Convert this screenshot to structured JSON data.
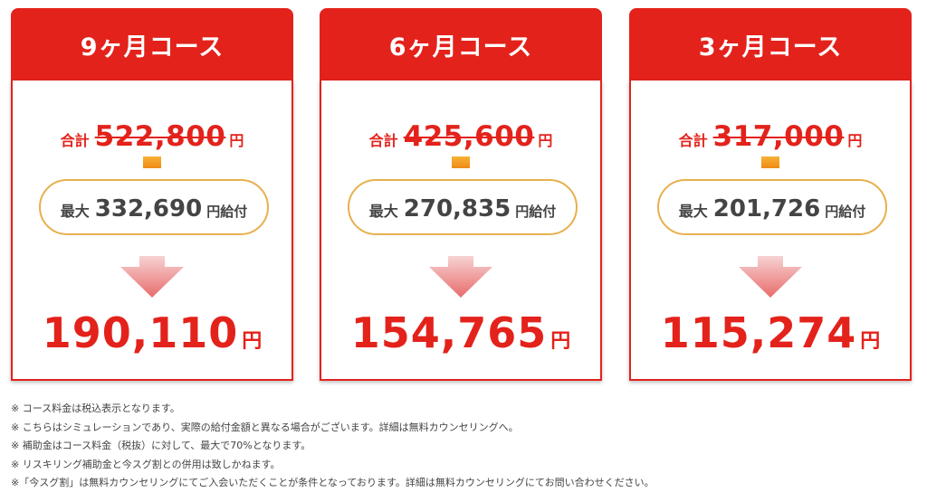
{
  "colors": {
    "accent": "#e3221b",
    "pill_border": "#e7b04e",
    "connector": "#f7b234",
    "arrow_top": "#f7d3d3",
    "arrow_bottom": "#e86b6b"
  },
  "cards": [
    {
      "title": "9ヶ月コース",
      "total_label": "合計",
      "total_price": "522,800",
      "total_yen": "円",
      "subsidy_label": "最大",
      "subsidy_amount": "332,690",
      "subsidy_suffix": "円給付",
      "final_price": "190,110",
      "final_yen": "円"
    },
    {
      "title": "6ヶ月コース",
      "total_label": "合計",
      "total_price": "425,600",
      "total_yen": "円",
      "subsidy_label": "最大",
      "subsidy_amount": "270,835",
      "subsidy_suffix": "円給付",
      "final_price": "154,765",
      "final_yen": "円"
    },
    {
      "title": "3ヶ月コース",
      "total_label": "合計",
      "total_price": "317,000",
      "total_yen": "円",
      "subsidy_label": "最大",
      "subsidy_amount": "201,726",
      "subsidy_suffix": "円給付",
      "final_price": "115,274",
      "final_yen": "円"
    }
  ],
  "notes": [
    "※ コース料金は税込表示となります。",
    "※ こちらはシミュレーションであり、実際の給付金額と異なる場合がございます。詳細は無料カウンセリングへ。",
    "※ 補助金はコース料金（税抜）に対して、最大で70%となります。",
    "※ リスキリング補助金と今スグ割との併用は致しかねます。",
    "※「今スグ割」は無料カウンセリングにてご入会いただくことが条件となっております。詳細は無料カウンセリングにてお問い合わせください。"
  ]
}
